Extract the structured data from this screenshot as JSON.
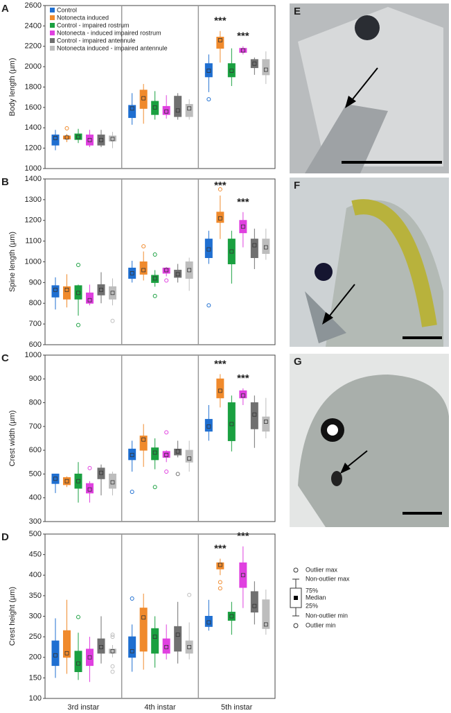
{
  "chart_data": [
    {
      "type": "box",
      "panel": "A",
      "y_label": "Body length (µm)",
      "ylim": [
        1000,
        2600
      ],
      "yticks": [
        1000,
        1200,
        1400,
        1600,
        1800,
        2000,
        2200,
        2400,
        2600
      ],
      "series": [
        {
          "name": "Control",
          "color": "#1f6fd1",
          "values": [
            [
              1180,
              1230,
              1300,
              1330,
              1380
            ],
            [
              1430,
              1500,
              1590,
              1620,
              1740
            ],
            [
              1750,
              1900,
              1960,
              2030,
              2120
            ]
          ],
          "outliers": [
            [],
            [],
            [
              1680
            ]
          ],
          "annotations": [
            null,
            null,
            null
          ]
        },
        {
          "name": "Notonecta induced",
          "color": "#f08a2c",
          "values": [
            [
              1260,
              1290,
              1305,
              1320,
              1340
            ],
            [
              1440,
              1590,
              1690,
              1770,
              1830
            ],
            [
              2040,
              2180,
              2260,
              2290,
              2350
            ]
          ],
          "outliers": [
            [
              1395
            ],
            [],
            []
          ],
          "annotations": [
            null,
            null,
            "***"
          ]
        },
        {
          "name": "Control - impaired rostrum",
          "color": "#1aa040",
          "values": [
            [
              1250,
              1285,
              1310,
              1340,
              1390
            ],
            [
              1480,
              1530,
              1600,
              1660,
              1760
            ],
            [
              1810,
              1900,
              1960,
              2030,
              2180
            ]
          ],
          "outliers": [
            [],
            [],
            []
          ],
          "annotations": [
            null,
            null,
            null
          ]
        },
        {
          "name": "Notonecta - induced impaired rostrum",
          "color": "#e040e0",
          "values": [
            [
              1210,
              1230,
              1280,
              1330,
              1380
            ],
            [
              1490,
              1530,
              1560,
              1610,
              1720
            ],
            [
              2120,
              2140,
              2160,
              2180,
              2200
            ]
          ],
          "outliers": [
            [],
            [],
            []
          ],
          "annotations": [
            null,
            null,
            "***"
          ]
        },
        {
          "name": "Control - impaired antennule",
          "color": "#707070",
          "values": [
            [
              1210,
              1230,
              1280,
              1330,
              1380
            ],
            [
              1480,
              1510,
              1570,
              1710,
              1740
            ],
            [
              1920,
              1990,
              2030,
              2070,
              2090
            ]
          ],
          "outliers": [
            [],
            [],
            []
          ],
          "annotations": [
            null,
            null,
            null
          ]
        },
        {
          "name": "Notonecta induced - impaired antennule",
          "color": "#bdbdbd",
          "values": [
            [
              1200,
              1270,
              1290,
              1320,
              1360
            ],
            [
              1480,
              1510,
              1590,
              1630,
              1680
            ],
            [
              1830,
              1920,
              1970,
              2070,
              2150
            ]
          ],
          "outliers": [
            [],
            [],
            []
          ],
          "annotations": [
            null,
            null,
            null
          ]
        }
      ]
    },
    {
      "type": "box",
      "panel": "B",
      "y_label": "Spine length (µm)",
      "ylim": [
        600,
        1400
      ],
      "yticks": [
        600,
        700,
        800,
        900,
        1000,
        1100,
        1200,
        1300,
        1400
      ],
      "series": [
        {
          "values": [
            [
              770,
              830,
              865,
              885,
              925
            ],
            [
              900,
              920,
              945,
              970,
              1005
            ],
            [
              990,
              1020,
              1060,
              1110,
              1150
            ]
          ],
          "outliers": [
            [],
            [],
            [
              790
            ]
          ],
          "annotations": [
            null,
            null,
            null
          ]
        },
        {
          "values": [
            [
              780,
              820,
              865,
              880,
              940
            ],
            [
              910,
              940,
              960,
              1000,
              1050
            ],
            [
              1110,
              1190,
              1210,
              1240,
              1320
            ]
          ],
          "outliers": [
            [],
            [
              1075
            ],
            [
              1350
            ]
          ],
          "annotations": [
            null,
            null,
            "***"
          ]
        },
        {
          "values": [
            [
              740,
              820,
              850,
              885,
              890
            ],
            [
              880,
              900,
              920,
              935,
              960
            ],
            [
              895,
              990,
              1050,
              1110,
              1150
            ]
          ],
          "outliers": [
            [
              985,
              695
            ],
            [
              1035,
              835
            ],
            []
          ],
          "annotations": [
            null,
            null,
            null
          ]
        },
        {
          "values": [
            [
              790,
              800,
              815,
              850,
              890
            ],
            [
              930,
              945,
              960,
              970,
              975
            ],
            [
              1070,
              1140,
              1170,
              1200,
              1240
            ]
          ],
          "outliers": [
            [],
            [
              910
            ],
            []
          ],
          "annotations": [
            null,
            null,
            "***"
          ]
        },
        {
          "values": [
            [
              800,
              840,
              865,
              890,
              950
            ],
            [
              900,
              925,
              940,
              960,
              990
            ],
            [
              965,
              1020,
              1080,
              1110,
              1160
            ]
          ],
          "outliers": [
            [],
            [],
            []
          ],
          "annotations": [
            null,
            null,
            null
          ]
        },
        {
          "values": [
            [
              790,
              820,
              850,
              880,
              920
            ],
            [
              860,
              920,
              960,
              1000,
              1020
            ],
            [
              1010,
              1040,
              1070,
              1110,
              1160
            ]
          ],
          "outliers": [
            [
              715
            ],
            [],
            []
          ],
          "annotations": [
            null,
            null,
            null
          ]
        }
      ]
    },
    {
      "type": "box",
      "panel": "C",
      "y_label": "Crest width (µm)",
      "ylim": [
        300,
        1000
      ],
      "yticks": [
        300,
        400,
        500,
        600,
        700,
        800,
        900,
        1000
      ],
      "series": [
        {
          "values": [
            [
              420,
              460,
              480,
              500,
              500
            ],
            [
              510,
              560,
              580,
              605,
              640
            ],
            [
              640,
              680,
              700,
              730,
              790
            ]
          ],
          "outliers": [
            [],
            [
              425
            ],
            []
          ],
          "annotations": [
            null,
            null,
            null
          ]
        },
        {
          "values": [
            [
              445,
              455,
              470,
              485,
              490
            ],
            [
              530,
              600,
              645,
              660,
              710
            ],
            [
              780,
              820,
              850,
              900,
              920
            ]
          ],
          "outliers": [
            [],
            [],
            []
          ],
          "annotations": [
            null,
            null,
            "***"
          ]
        },
        {
          "values": [
            [
              380,
              440,
              470,
              500,
              550
            ],
            [
              520,
              560,
              590,
              610,
              650
            ],
            [
              595,
              640,
              710,
              800,
              830
            ]
          ],
          "outliers": [
            [],
            [
              445
            ],
            []
          ],
          "annotations": [
            null,
            null,
            null
          ]
        },
        {
          "values": [
            [
              380,
              420,
              435,
              460,
              470
            ],
            [
              550,
              570,
              580,
              595,
              600
            ],
            [
              790,
              820,
              830,
              850,
              860
            ]
          ],
          "outliers": [
            [
              525
            ],
            [
              675,
              510
            ],
            []
          ],
          "annotations": [
            null,
            null,
            "***"
          ]
        },
        {
          "values": [
            [
              410,
              480,
              505,
              525,
              540
            ],
            [
              570,
              580,
              595,
              605,
              640
            ],
            [
              610,
              690,
              750,
              800,
              830
            ]
          ],
          "outliers": [
            [],
            [
              500
            ],
            []
          ],
          "annotations": [
            null,
            null,
            null
          ]
        },
        {
          "values": [
            [
              410,
              440,
              465,
              500,
              510
            ],
            [
              510,
              550,
              565,
              600,
              640
            ],
            [
              650,
              680,
              720,
              740,
              820
            ]
          ],
          "outliers": [
            [],
            [],
            []
          ],
          "annotations": [
            null,
            null,
            null
          ]
        }
      ]
    },
    {
      "type": "box",
      "panel": "D",
      "y_label": "Crest height (µm)",
      "categories": [
        "3rd instar",
        "4th instar",
        "5th instar"
      ],
      "ylim": [
        100,
        500
      ],
      "yticks": [
        100,
        150,
        200,
        250,
        300,
        350,
        400,
        450,
        500
      ],
      "series": [
        {
          "values": [
            [
              150,
              180,
              205,
              240,
              295
            ],
            [
              165,
              200,
              215,
              250,
              280
            ],
            [
              265,
              275,
              285,
              300,
              340
            ]
          ],
          "outliers": [
            [],
            [
              343
            ],
            []
          ],
          "annotations": [
            null,
            null,
            null
          ]
        },
        {
          "values": [
            [
              160,
              200,
              210,
              265,
              340
            ],
            [
              170,
              215,
              297,
              320,
              355
            ],
            [
              400,
              415,
              425,
              430,
              440
            ]
          ],
          "outliers": [
            [],
            [],
            [
              383,
              368
            ]
          ],
          "annotations": [
            null,
            null,
            "***"
          ]
        },
        {
          "values": [
            [
              145,
              165,
              185,
              215,
              260
            ],
            [
              175,
              210,
              250,
              270,
              300
            ],
            [
              255,
              290,
              300,
              310,
              335
            ]
          ],
          "outliers": [
            [
              298
            ],
            [],
            []
          ],
          "annotations": [
            null,
            null,
            null
          ]
        },
        {
          "values": [
            [
              140,
              180,
              200,
              220,
              250
            ],
            [
              195,
              210,
              225,
              245,
              280
            ],
            [
              320,
              370,
              400,
              430,
              470
            ]
          ],
          "outliers": [
            [],
            [],
            []
          ],
          "annotations": [
            null,
            null,
            "***"
          ]
        },
        {
          "values": [
            [
              185,
              210,
              225,
              245,
              300
            ],
            [
              185,
              215,
              255,
              275,
              335
            ],
            [
              280,
              310,
              325,
              360,
              385
            ]
          ],
          "outliers": [
            [],
            [],
            []
          ],
          "annotations": [
            null,
            null,
            null
          ]
        },
        {
          "values": [
            [
              200,
              210,
              215,
              220,
              230
            ],
            [
              195,
              210,
              225,
              240,
              285
            ],
            [
              255,
              270,
              280,
              340,
              365
            ]
          ],
          "outliers": [
            [
              255,
              250,
              178,
              165
            ],
            [
              352
            ],
            []
          ],
          "annotations": [
            null,
            null,
            null
          ]
        }
      ]
    }
  ],
  "box_legend": [
    "Outlier max",
    "Non-outlier max",
    "75%",
    "Median",
    "25%",
    "Non-outlier min",
    "Outlier min"
  ],
  "image_panels": [
    "E",
    "F",
    "G"
  ]
}
